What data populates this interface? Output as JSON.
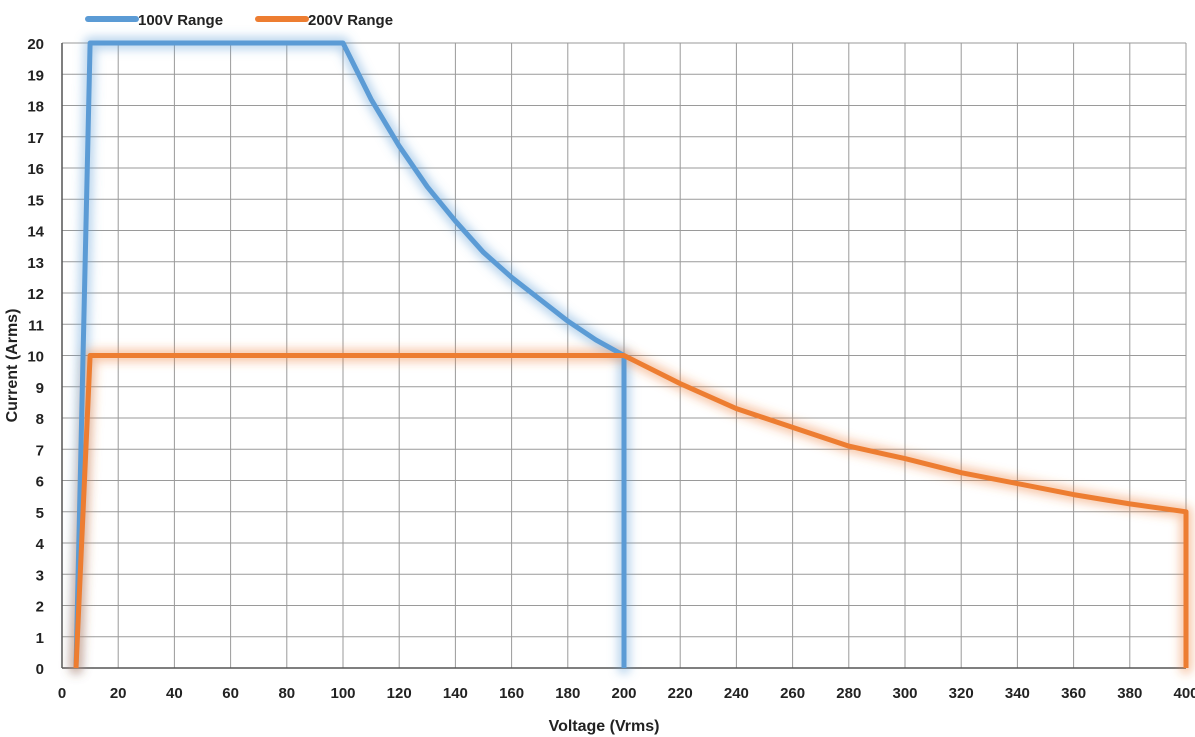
{
  "chart_data": {
    "type": "line",
    "xlabel": "Voltage (Vrms)",
    "ylabel": "Current (Arms)",
    "xlim": [
      0,
      400
    ],
    "ylim": [
      0,
      20
    ],
    "x_ticks": [
      0,
      20,
      40,
      60,
      80,
      100,
      120,
      140,
      160,
      180,
      200,
      220,
      240,
      260,
      280,
      300,
      320,
      340,
      360,
      380,
      400
    ],
    "y_ticks": [
      0,
      1,
      2,
      3,
      4,
      5,
      6,
      7,
      8,
      9,
      10,
      11,
      12,
      13,
      14,
      15,
      16,
      17,
      18,
      19,
      20
    ],
    "grid": true,
    "legend_position": "top-left",
    "series": [
      {
        "name": "100V Range",
        "color": "#5b9bd5",
        "points": [
          [
            5,
            0
          ],
          [
            10,
            20
          ],
          [
            100,
            20
          ],
          [
            110,
            18.2
          ],
          [
            120,
            16.7
          ],
          [
            130,
            15.4
          ],
          [
            140,
            14.3
          ],
          [
            150,
            13.3
          ],
          [
            160,
            12.5
          ],
          [
            170,
            11.8
          ],
          [
            180,
            11.1
          ],
          [
            190,
            10.5
          ],
          [
            200,
            10
          ],
          [
            200,
            0
          ]
        ]
      },
      {
        "name": "200V Range",
        "color": "#ed7d31",
        "points": [
          [
            5,
            0
          ],
          [
            10,
            10
          ],
          [
            200,
            10
          ],
          [
            220,
            9.1
          ],
          [
            240,
            8.3
          ],
          [
            260,
            7.7
          ],
          [
            280,
            7.1
          ],
          [
            300,
            6.7
          ],
          [
            320,
            6.25
          ],
          [
            340,
            5.9
          ],
          [
            360,
            5.55
          ],
          [
            380,
            5.25
          ],
          [
            400,
            5
          ],
          [
            400,
            0
          ]
        ]
      }
    ]
  }
}
